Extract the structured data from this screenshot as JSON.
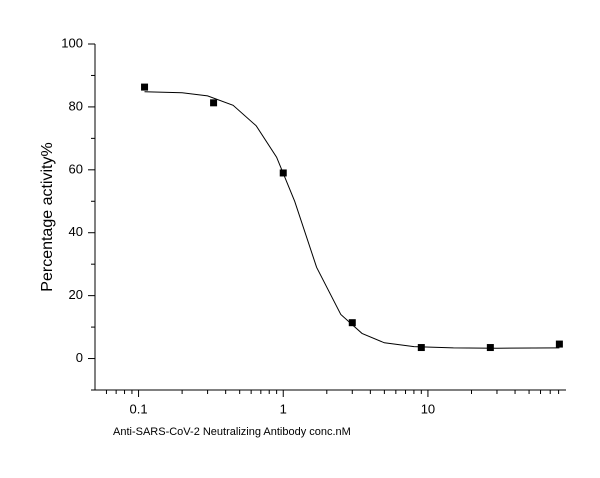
{
  "chart_data": {
    "type": "scatter",
    "xlabel": "Anti-SARS-CoV-2 Neutralizing Antibody  conc.nM",
    "ylabel": "Percentage activity%",
    "xscale": "log",
    "xlim": [
      0.05,
      90
    ],
    "xticks": [
      0.1,
      1,
      10
    ],
    "ylim": [
      -10,
      100
    ],
    "yticks": [
      0,
      20,
      40,
      60,
      80,
      100
    ],
    "series": [
      {
        "style": "markers",
        "color": "#000000",
        "x": [
          0.11,
          0.33,
          1,
          3,
          9,
          27,
          81
        ],
        "values": [
          86.3,
          81.3,
          59,
          11.4,
          3.5,
          3.5,
          4.6
        ]
      },
      {
        "style": "line",
        "color": "#000000",
        "x": [
          0.11,
          0.2,
          0.3,
          0.45,
          0.65,
          0.9,
          1.2,
          1.7,
          2.5,
          3.5,
          5,
          8,
          15,
          30,
          81
        ],
        "values": [
          84.8,
          84.5,
          83.5,
          80.5,
          74,
          64,
          50,
          29,
          14,
          8,
          5,
          3.8,
          3.4,
          3.3,
          3.4
        ]
      }
    ]
  }
}
